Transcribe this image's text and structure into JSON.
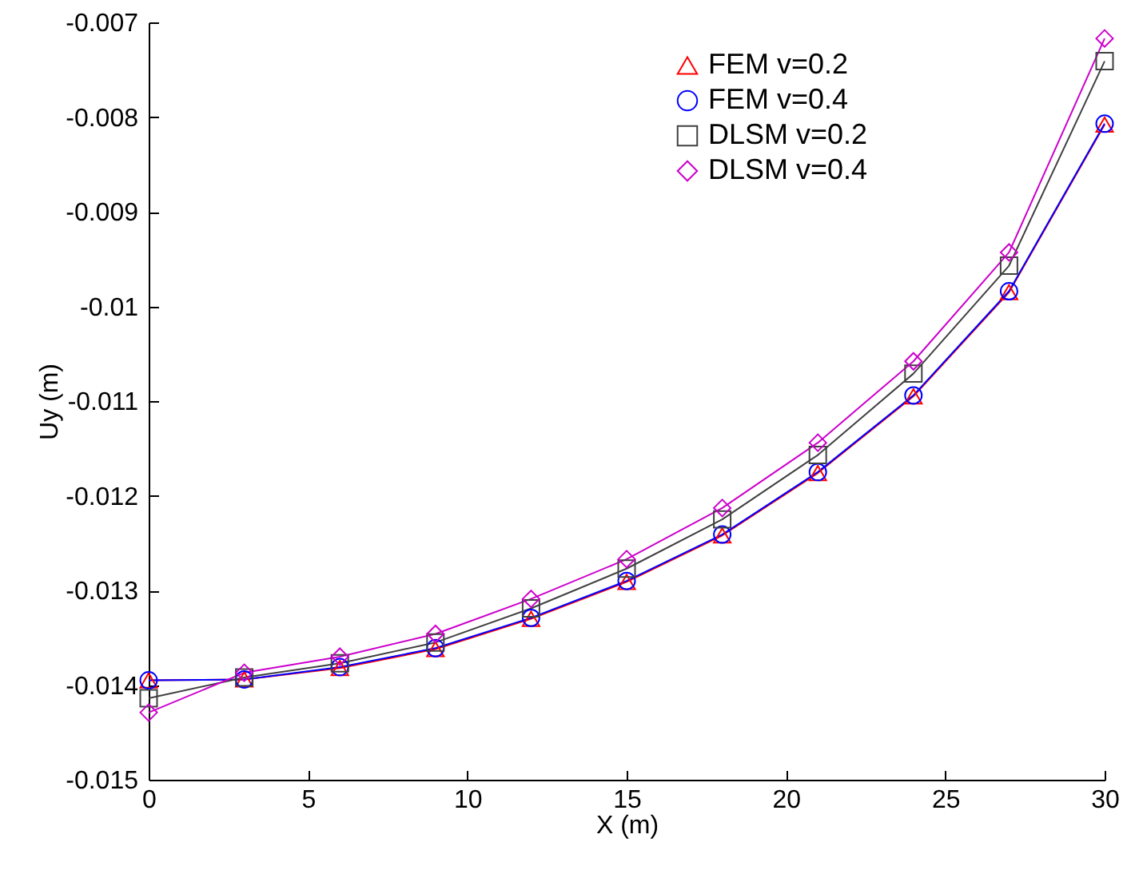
{
  "chart_data": {
    "type": "line",
    "xlabel": "X (m)",
    "ylabel": "Uy (m)",
    "x": [
      0,
      3,
      6,
      9,
      12,
      15,
      18,
      21,
      24,
      27,
      30
    ],
    "series": [
      {
        "name": "FEM v=0.2",
        "color": "#ff0000",
        "marker": "triangle",
        "values": [
          -0.01395,
          -0.01394,
          -0.01382,
          -0.01362,
          -0.0133,
          -0.01291,
          -0.01242,
          -0.01176,
          -0.01095,
          -0.00985,
          -0.00808
        ]
      },
      {
        "name": "FEM v=0.4",
        "color": "#0000ff",
        "marker": "circle",
        "values": [
          -0.01395,
          -0.01394,
          -0.01381,
          -0.01361,
          -0.01329,
          -0.0129,
          -0.01241,
          -0.01175,
          -0.01094,
          -0.00984,
          -0.00807
        ]
      },
      {
        "name": "DLSM v=0.2",
        "color": "#404040",
        "marker": "square",
        "values": [
          -0.01414,
          -0.01392,
          -0.01377,
          -0.01355,
          -0.01319,
          -0.01277,
          -0.01225,
          -0.01157,
          -0.01071,
          -0.00957,
          -0.00741
        ]
      },
      {
        "name": "DLSM v=0.4",
        "color": "#cc00cc",
        "marker": "diamond",
        "values": [
          -0.01429,
          -0.01387,
          -0.0137,
          -0.01346,
          -0.01309,
          -0.01267,
          -0.01213,
          -0.01144,
          -0.01058,
          -0.00943,
          -0.00717
        ]
      }
    ],
    "xlim": [
      0,
      30
    ],
    "xticks": [
      0,
      5,
      10,
      15,
      20,
      25,
      30
    ],
    "ylim": [
      -0.015,
      -0.007
    ],
    "yticks": [
      -0.015,
      -0.014,
      -0.013,
      -0.012,
      -0.011,
      -0.01,
      -0.009,
      -0.008,
      -0.007
    ],
    "grid": false,
    "legend": "top right",
    "line_style": "solid"
  }
}
